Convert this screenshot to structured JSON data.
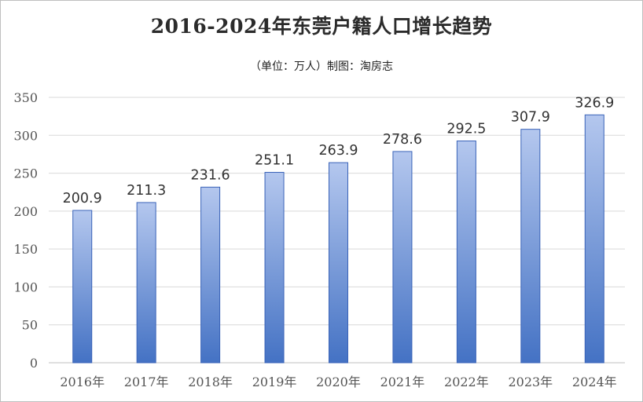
{
  "chart_data": {
    "type": "bar",
    "title": "2016-2024年东莞户籍人口增长趋势",
    "subtitle": "（单位：万人）制图：淘房志",
    "categories": [
      "2016年",
      "2017年",
      "2018年",
      "2019年",
      "2020年",
      "2021年",
      "2022年",
      "2023年",
      "2024年"
    ],
    "values": [
      200.9,
      211.3,
      231.6,
      251.1,
      263.9,
      278.6,
      292.5,
      307.9,
      326.9
    ],
    "value_labels": [
      "200.9",
      "211.3",
      "231.6",
      "251.1",
      "263.9",
      "278.6",
      "292.5",
      "307.9",
      "326.9"
    ],
    "ylim": [
      0,
      350
    ],
    "yticks": [
      0,
      50,
      100,
      150,
      200,
      250,
      300,
      350
    ],
    "grid": true,
    "colors": {
      "bar_top": "#b4c7ee",
      "bar_bottom": "#4472c4",
      "bar_border": "#3a63b8",
      "grid": "#d9d9d9"
    }
  }
}
